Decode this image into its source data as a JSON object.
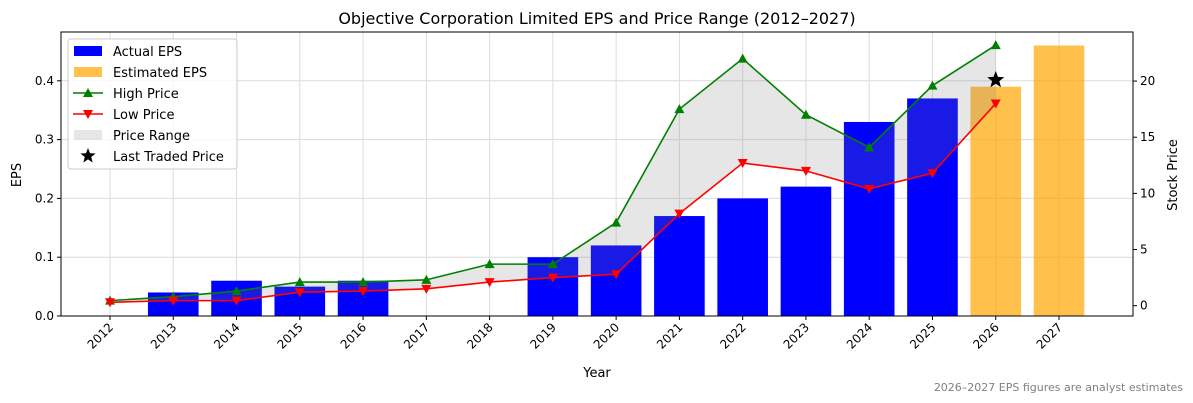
{
  "chart_data": {
    "type": "bar",
    "title": "Objective Corporation Limited EPS and Price Range (2012–2027)",
    "xlabel": "Year",
    "ylabel": "EPS",
    "y2label": "Stock Price",
    "footnote": "2026–2027 EPS figures are analyst estimates",
    "categories": [
      "2012",
      "2013",
      "2014",
      "2015",
      "2016",
      "2017",
      "2018",
      "2019",
      "2020",
      "2021",
      "2022",
      "2023",
      "2024",
      "2025",
      "2026",
      "2027"
    ],
    "ylim": [
      0,
      0.483
    ],
    "y2lim": [
      -0.92,
      24.37
    ],
    "yticks": [
      "0.0",
      "0.1",
      "0.2",
      "0.3",
      "0.4"
    ],
    "y2ticks": [
      "0",
      "5",
      "10",
      "15",
      "20"
    ],
    "grid": true,
    "legend_position": "top-left",
    "series": [
      {
        "name": "Actual EPS",
        "type": "bar",
        "axis": "left",
        "color": "#0000ff",
        "values": [
          null,
          0.04,
          0.06,
          0.05,
          0.06,
          null,
          null,
          0.1,
          0.12,
          0.17,
          0.2,
          0.22,
          0.33,
          0.37,
          null,
          null
        ]
      },
      {
        "name": "Estimated EPS",
        "type": "bar",
        "axis": "left",
        "color": "#ffa500",
        "values": [
          null,
          null,
          null,
          null,
          null,
          null,
          null,
          null,
          null,
          null,
          null,
          null,
          null,
          null,
          0.39,
          0.46
        ]
      },
      {
        "name": "High Price",
        "type": "line",
        "axis": "right",
        "color": "#008000",
        "marker": "triangle-up",
        "values": [
          0.45,
          0.8,
          1.3,
          2.1,
          2.1,
          2.3,
          3.7,
          3.7,
          7.4,
          17.5,
          22.0,
          17.0,
          14.1,
          19.6,
          23.2,
          null
        ]
      },
      {
        "name": "Low Price",
        "type": "line",
        "axis": "right",
        "color": "#ff0000",
        "marker": "triangle-down",
        "values": [
          0.3,
          0.45,
          0.45,
          1.2,
          1.3,
          1.5,
          2.1,
          2.5,
          2.8,
          8.2,
          12.7,
          12.0,
          10.4,
          11.8,
          18.0,
          null
        ]
      },
      {
        "name": "Price Range",
        "type": "area",
        "axis": "right",
        "color": "#808080"
      },
      {
        "name": "Last Traded Price",
        "type": "scatter",
        "axis": "right",
        "color": "#000000",
        "marker": "star",
        "x": "2026",
        "value": 20.1
      }
    ]
  }
}
